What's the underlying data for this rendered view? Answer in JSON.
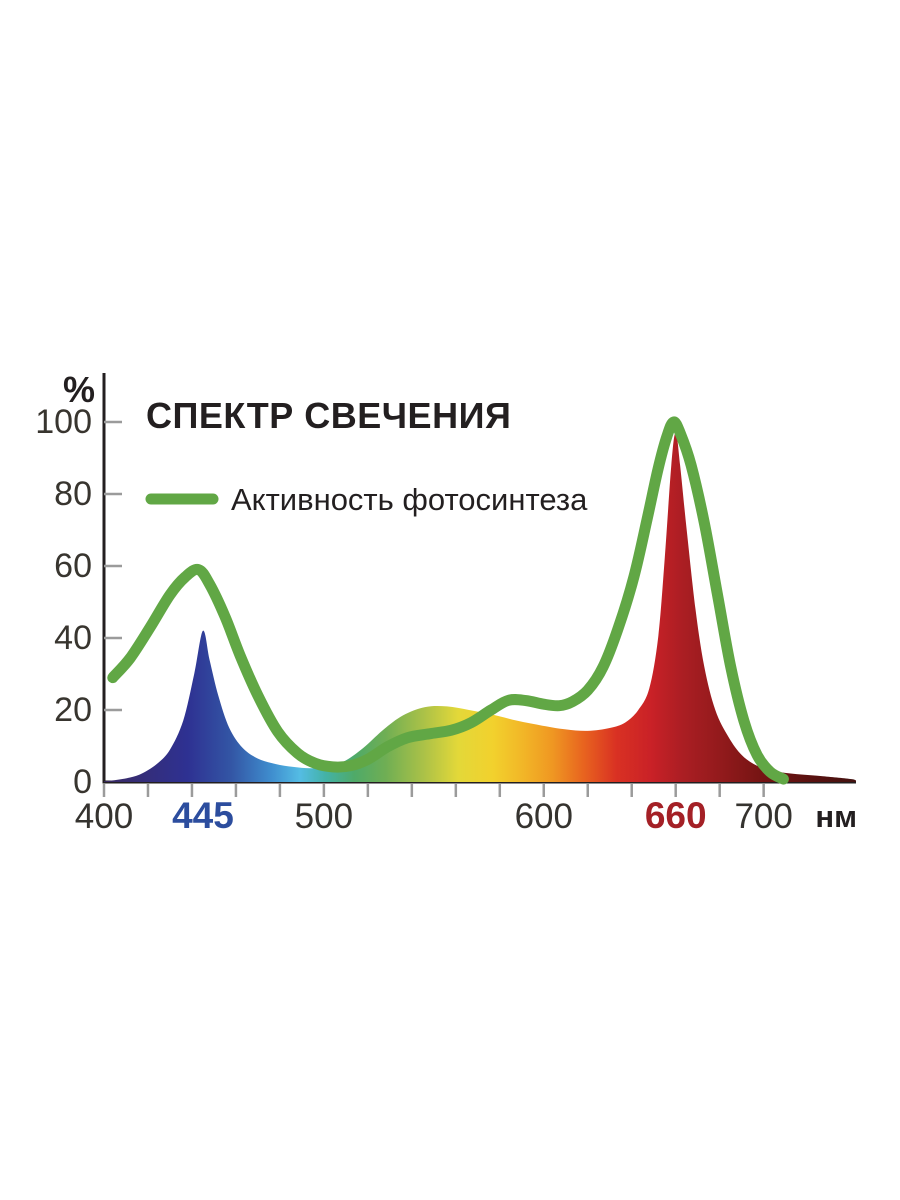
{
  "chart_data": {
    "type": "area",
    "title": "СПЕКТР СВЕЧЕНИЯ",
    "xlabel": "нм",
    "ylabel": "%",
    "xlim": [
      400,
      742
    ],
    "ylim": [
      0,
      100
    ],
    "y_ticks": [
      0,
      20,
      40,
      60,
      80,
      100
    ],
    "x_minor_ticks": {
      "start": 400,
      "end": 700,
      "step": 20
    },
    "x_tick_labels": [
      {
        "value": 400,
        "text": "400",
        "color": "#35332f",
        "bold": false
      },
      {
        "value": 445,
        "text": "445",
        "color": "#2c4d9e",
        "bold": true
      },
      {
        "value": 500,
        "text": "500",
        "color": "#35332f",
        "bold": false
      },
      {
        "value": 600,
        "text": "600",
        "color": "#35332f",
        "bold": false
      },
      {
        "value": 660,
        "text": "660",
        "color": "#a42026",
        "bold": true
      },
      {
        "value": 700,
        "text": "700",
        "color": "#35332f",
        "bold": false
      }
    ],
    "legend": {
      "position": "top-left-inside",
      "entries": [
        {
          "label": "Активность фотосинтеза",
          "color": "#61a745",
          "kind": "line"
        }
      ]
    },
    "style": {
      "axis_color": "#231f20",
      "tick_color": "#9b9b9b",
      "text_color": "#231f20",
      "y_label_color": "#38352f"
    },
    "series": [
      {
        "name": "Спектр свечения",
        "kind": "area",
        "gradient_stops": [
          [
            400,
            "#3a2a63"
          ],
          [
            438,
            "#2e3192"
          ],
          [
            458,
            "#3356a5"
          ],
          [
            476,
            "#3f8dce"
          ],
          [
            489,
            "#54bce4"
          ],
          [
            501,
            "#43b2a5"
          ],
          [
            514,
            "#4faa68"
          ],
          [
            528,
            "#6fae54"
          ],
          [
            546,
            "#adc247"
          ],
          [
            561,
            "#e3d839"
          ],
          [
            577,
            "#f2d12d"
          ],
          [
            591,
            "#f2b527"
          ],
          [
            604,
            "#ef9722"
          ],
          [
            618,
            "#e8641f"
          ],
          [
            633,
            "#d93123"
          ],
          [
            649,
            "#c92127"
          ],
          [
            663,
            "#ab1e23"
          ],
          [
            680,
            "#931a1c"
          ],
          [
            700,
            "#741413"
          ],
          [
            722,
            "#591110"
          ],
          [
            742,
            "#431210"
          ]
        ],
        "points": [
          [
            400,
            0.2
          ],
          [
            408,
            0.8
          ],
          [
            416,
            2
          ],
          [
            424,
            5
          ],
          [
            430,
            9
          ],
          [
            436,
            17
          ],
          [
            441,
            30
          ],
          [
            445,
            42
          ],
          [
            448,
            34
          ],
          [
            452,
            24
          ],
          [
            457,
            15
          ],
          [
            463,
            9.5
          ],
          [
            470,
            6.5
          ],
          [
            478,
            5
          ],
          [
            486,
            4.2
          ],
          [
            494,
            3.8
          ],
          [
            502,
            4.2
          ],
          [
            510,
            6
          ],
          [
            518,
            9.5
          ],
          [
            527,
            14.5
          ],
          [
            536,
            18.5
          ],
          [
            546,
            20.8
          ],
          [
            556,
            21
          ],
          [
            566,
            20
          ],
          [
            576,
            18.8
          ],
          [
            588,
            17
          ],
          [
            598,
            15.8
          ],
          [
            610,
            14.6
          ],
          [
            620,
            14.2
          ],
          [
            630,
            15
          ],
          [
            637,
            16.5
          ],
          [
            643,
            20
          ],
          [
            648,
            26
          ],
          [
            652,
            40
          ],
          [
            655,
            62
          ],
          [
            658,
            88
          ],
          [
            660,
            97
          ],
          [
            662,
            88
          ],
          [
            665,
            70
          ],
          [
            669,
            48
          ],
          [
            673,
            32
          ],
          [
            678,
            20
          ],
          [
            684,
            12.5
          ],
          [
            690,
            7.5
          ],
          [
            697,
            4.5
          ],
          [
            705,
            3
          ],
          [
            715,
            2.2
          ],
          [
            727,
            1.6
          ],
          [
            740,
            0.8
          ],
          [
            742,
            0.3
          ]
        ]
      },
      {
        "name": "Активность фотосинтеза",
        "kind": "line",
        "color": "#61a745",
        "stroke_width": 11,
        "points": [
          [
            404,
            29
          ],
          [
            412,
            34.5
          ],
          [
            421,
            43
          ],
          [
            430,
            52
          ],
          [
            437,
            57
          ],
          [
            443,
            59
          ],
          [
            448,
            55
          ],
          [
            455,
            46
          ],
          [
            462,
            35
          ],
          [
            470,
            24
          ],
          [
            479,
            14
          ],
          [
            488,
            8
          ],
          [
            496,
            5.2
          ],
          [
            504,
            4.2
          ],
          [
            512,
            4.5
          ],
          [
            520,
            6.3
          ],
          [
            529,
            9.8
          ],
          [
            538,
            12.3
          ],
          [
            548,
            13.4
          ],
          [
            558,
            14.4
          ],
          [
            567,
            16.5
          ],
          [
            576,
            20
          ],
          [
            584,
            22.7
          ],
          [
            592,
            22.6
          ],
          [
            600,
            21.6
          ],
          [
            607,
            21.2
          ],
          [
            613,
            22.3
          ],
          [
            620,
            25.5
          ],
          [
            627,
            32
          ],
          [
            634,
            43
          ],
          [
            641,
            57
          ],
          [
            647,
            73
          ],
          [
            652,
            87
          ],
          [
            656,
            96
          ],
          [
            659,
            100
          ],
          [
            662,
            97
          ],
          [
            667,
            88
          ],
          [
            673,
            72
          ],
          [
            679,
            52
          ],
          [
            685,
            32
          ],
          [
            691,
            17
          ],
          [
            697,
            7.5
          ],
          [
            703,
            2.8
          ],
          [
            709,
            0.8
          ]
        ]
      }
    ]
  }
}
